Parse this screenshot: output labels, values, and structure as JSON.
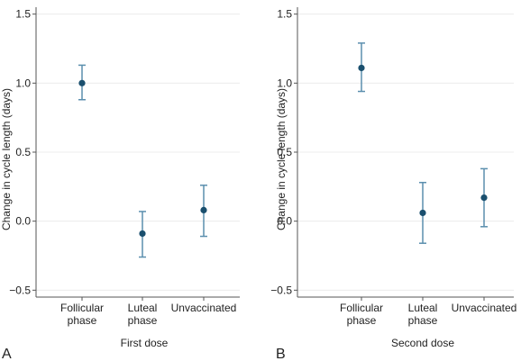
{
  "chart_data": [
    {
      "type": "scatter",
      "panel_label": "A",
      "xlabel": "First dose",
      "ylabel": "Change in cycle length (days)",
      "categories": [
        [
          "Follicular",
          "phase"
        ],
        [
          "Luteal",
          "phase"
        ],
        [
          "Unvaccinated"
        ]
      ],
      "ylim": [
        -0.55,
        1.55
      ],
      "yticks": [
        -0.5,
        0,
        0.5,
        1.0,
        1.5
      ],
      "ytick_labels": [
        "−0.5",
        "0.0",
        "0.5",
        "1.0",
        "1.5"
      ],
      "grid": true,
      "series": [
        {
          "estimates": [
            1.0,
            -0.09,
            0.08
          ],
          "lower": [
            0.88,
            -0.26,
            -0.11
          ],
          "upper": [
            1.13,
            0.07,
            0.26
          ]
        }
      ]
    },
    {
      "type": "scatter",
      "panel_label": "B",
      "xlabel": "Second dose",
      "ylabel": "Change in cycle length (days)",
      "categories": [
        [
          "Follicular",
          "phase"
        ],
        [
          "Luteal",
          "phase"
        ],
        [
          "Unvaccinated"
        ]
      ],
      "ylim": [
        -0.55,
        1.55
      ],
      "yticks": [
        -0.5,
        0,
        0.5,
        1.0,
        1.5
      ],
      "ytick_labels": [
        "−0.5",
        "0.0",
        "0.5",
        "1.0",
        "1.5"
      ],
      "grid": true,
      "series": [
        {
          "estimates": [
            1.11,
            0.06,
            0.17
          ],
          "lower": [
            0.94,
            -0.16,
            -0.04
          ],
          "upper": [
            1.29,
            0.28,
            0.38
          ]
        }
      ]
    }
  ],
  "colors": {
    "point": "#1a4f6e",
    "errorbar": "#5b8fae",
    "grid": "#ececec",
    "axis": "#555555"
  }
}
